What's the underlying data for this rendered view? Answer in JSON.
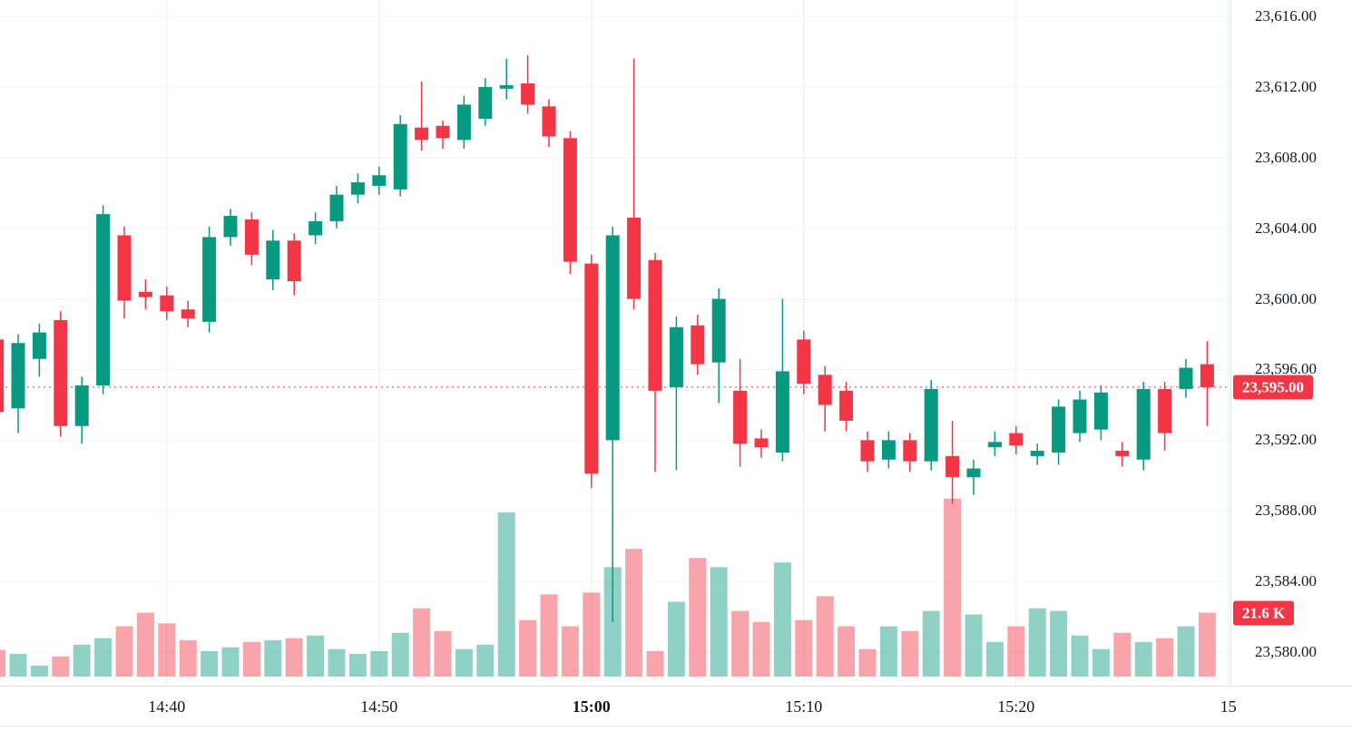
{
  "chart_data": {
    "type": "candlestick",
    "timeframe_minutes": 1,
    "legend_position": "none",
    "grid": true,
    "last_price": {
      "label": "23,595.00",
      "value": 23595.0
    },
    "volume_badge": {
      "label": "21.6 K",
      "value": 21.6
    },
    "colors": {
      "up": "#089981",
      "down": "#F23645",
      "up_volume": "rgba(8,153,129,0.45)",
      "down_volume": "rgba(242,54,69,0.45)",
      "badge": "#F23645",
      "price_line": "#F23645",
      "grid_vertical": "#e9ecf0",
      "grid_horizontal": "#f2f4f7",
      "axis_text": "#131722",
      "axis_border": "#e0e3eb"
    },
    "y_axis": {
      "side": "right",
      "range": [
        23580,
        23616
      ],
      "ticks": [
        {
          "label": "23,616.00",
          "value": 23616
        },
        {
          "label": "23,612.00",
          "value": 23612
        },
        {
          "label": "23,608.00",
          "value": 23608
        },
        {
          "label": "23,604.00",
          "value": 23604
        },
        {
          "label": "23,600.00",
          "value": 23600
        },
        {
          "label": "23,596.00",
          "value": 23596
        },
        {
          "label": "23,592.00",
          "value": 23592
        },
        {
          "label": "23,588.00",
          "value": 23588
        },
        {
          "label": "23,584.00",
          "value": 23584
        },
        {
          "label": "23,580.00",
          "value": 23580
        }
      ]
    },
    "x_axis": {
      "ticks": [
        {
          "label": "14:40",
          "index": 8,
          "bold": false
        },
        {
          "label": "14:50",
          "index": 18,
          "bold": false
        },
        {
          "label": "15:00",
          "index": 28,
          "bold": true
        },
        {
          "label": "15:10",
          "index": 38,
          "bold": false
        },
        {
          "label": "15:20",
          "index": 48,
          "bold": false
        },
        {
          "label": "15",
          "index": 58,
          "bold": false
        }
      ]
    },
    "candles_format": [
      "time",
      "open",
      "high",
      "low",
      "close",
      "volume_k"
    ],
    "candles": [
      [
        "14:32",
        23597.7,
        23598.2,
        23592.6,
        23593.6,
        9.0
      ],
      [
        "14:33",
        23593.8,
        23598.0,
        23592.4,
        23597.5,
        7.7
      ],
      [
        "14:34",
        23596.6,
        23598.6,
        23595.6,
        23598.1,
        3.7
      ],
      [
        "14:35",
        23598.8,
        23599.3,
        23592.2,
        23592.8,
        6.8
      ],
      [
        "14:36",
        23592.8,
        23595.6,
        23591.8,
        23595.1,
        10.8
      ],
      [
        "14:37",
        23595.1,
        23605.3,
        23594.6,
        23604.8,
        13.0
      ],
      [
        "14:38",
        23603.6,
        23604.1,
        23598.9,
        23599.9,
        17.0
      ],
      [
        "14:39",
        23600.4,
        23601.1,
        23599.4,
        23600.1,
        21.6
      ],
      [
        "14:40",
        23600.2,
        23600.7,
        23598.8,
        23599.3,
        18.0
      ],
      [
        "14:41",
        23599.4,
        23599.9,
        23598.4,
        23598.9,
        12.3
      ],
      [
        "14:42",
        23598.7,
        23604.1,
        23598.1,
        23603.5,
        8.6
      ],
      [
        "14:43",
        23603.5,
        23605.1,
        23603.0,
        23604.7,
        9.9
      ],
      [
        "14:44",
        23604.5,
        23604.9,
        23601.9,
        23602.5,
        11.7
      ],
      [
        "14:45",
        23601.1,
        23603.9,
        23600.5,
        23603.3,
        12.3
      ],
      [
        "14:46",
        23603.3,
        23603.7,
        23600.2,
        23601.0,
        13.0
      ],
      [
        "14:47",
        23603.6,
        23604.9,
        23603.1,
        23604.4,
        13.9
      ],
      [
        "14:48",
        23604.4,
        23606.4,
        23604.0,
        23605.9,
        9.3
      ],
      [
        "14:49",
        23605.9,
        23607.1,
        23605.4,
        23606.6,
        7.7
      ],
      [
        "14:50",
        23606.4,
        23607.5,
        23605.9,
        23607.0,
        8.6
      ],
      [
        "14:51",
        23606.2,
        23610.4,
        23605.8,
        23609.9,
        14.8
      ],
      [
        "14:52",
        23609.7,
        23612.3,
        23608.4,
        23609.0,
        23.1
      ],
      [
        "14:53",
        23609.8,
        23610.1,
        23608.5,
        23609.1,
        15.4
      ],
      [
        "14:54",
        23609.0,
        23611.5,
        23608.5,
        23611.0,
        9.3
      ],
      [
        "14:55",
        23610.2,
        23612.5,
        23609.8,
        23612.0,
        10.8
      ],
      [
        "14:56",
        23611.9,
        23613.6,
        23611.3,
        23612.1,
        55.5
      ],
      [
        "14:57",
        23612.2,
        23613.8,
        23610.5,
        23611.0,
        19.1
      ],
      [
        "14:58",
        23610.9,
        23611.3,
        23608.6,
        23609.2,
        27.8
      ],
      [
        "14:59",
        23609.1,
        23609.5,
        23601.4,
        23602.1,
        17.0
      ],
      [
        "15:00",
        23602.0,
        23602.5,
        23589.3,
        23590.1,
        28.4
      ],
      [
        "15:01",
        23592.0,
        23604.1,
        23581.7,
        23603.6,
        37.0
      ],
      [
        "15:02",
        23604.6,
        23613.6,
        23599.4,
        23600.0,
        43.2
      ],
      [
        "15:03",
        23602.2,
        23602.6,
        23590.2,
        23594.8,
        8.6
      ],
      [
        "15:04",
        23595.0,
        23599.0,
        23590.3,
        23598.4,
        25.3
      ],
      [
        "15:05",
        23598.5,
        23599.1,
        23595.7,
        23596.3,
        40.1
      ],
      [
        "15:06",
        23596.4,
        23600.6,
        23594.1,
        23600.0,
        37.0
      ],
      [
        "15:07",
        23594.8,
        23596.6,
        23590.5,
        23591.8,
        22.2
      ],
      [
        "15:08",
        23592.1,
        23592.6,
        23591.0,
        23591.6,
        18.5
      ],
      [
        "15:09",
        23591.3,
        23600.0,
        23590.8,
        23595.9,
        38.6
      ],
      [
        "15:10",
        23597.7,
        23598.2,
        23594.6,
        23595.2,
        19.1
      ],
      [
        "15:11",
        23595.7,
        23596.2,
        23592.5,
        23594.0,
        27.2
      ],
      [
        "15:12",
        23594.8,
        23595.3,
        23592.5,
        23593.1,
        17.0
      ],
      [
        "15:13",
        23592.0,
        23592.5,
        23590.2,
        23590.8,
        9.3
      ],
      [
        "15:14",
        23590.9,
        23592.5,
        23590.4,
        23592.0,
        17.0
      ],
      [
        "15:15",
        23592.0,
        23592.4,
        23590.2,
        23590.8,
        15.4
      ],
      [
        "15:16",
        23590.8,
        23595.4,
        23590.3,
        23594.9,
        22.2
      ],
      [
        "15:17",
        23591.1,
        23593.1,
        23588.4,
        23589.9,
        60.2
      ],
      [
        "15:18",
        23589.9,
        23590.9,
        23588.9,
        23590.4,
        21.0
      ],
      [
        "15:19",
        23591.6,
        23592.5,
        23591.1,
        23591.9,
        11.7
      ],
      [
        "15:20",
        23592.4,
        23592.8,
        23591.2,
        23591.7,
        17.0
      ],
      [
        "15:21",
        23591.1,
        23591.8,
        23590.6,
        23591.4,
        23.1
      ],
      [
        "15:22",
        23591.3,
        23594.3,
        23590.6,
        23593.9,
        22.2
      ],
      [
        "15:23",
        23592.4,
        23594.8,
        23591.9,
        23594.3,
        13.9
      ],
      [
        "15:24",
        23592.6,
        23595.1,
        23592.0,
        23594.7,
        9.3
      ],
      [
        "15:25",
        23591.4,
        23591.9,
        23590.5,
        23591.1,
        14.8
      ],
      [
        "15:26",
        23590.9,
        23595.3,
        23590.3,
        23594.9,
        11.7
      ],
      [
        "15:27",
        23594.9,
        23595.3,
        23591.4,
        23592.4,
        13.0
      ],
      [
        "15:28",
        23594.9,
        23596.6,
        23594.4,
        23596.1,
        17.0
      ],
      [
        "15:29",
        23596.3,
        23597.6,
        23592.8,
        23595.0,
        21.6
      ]
    ]
  }
}
